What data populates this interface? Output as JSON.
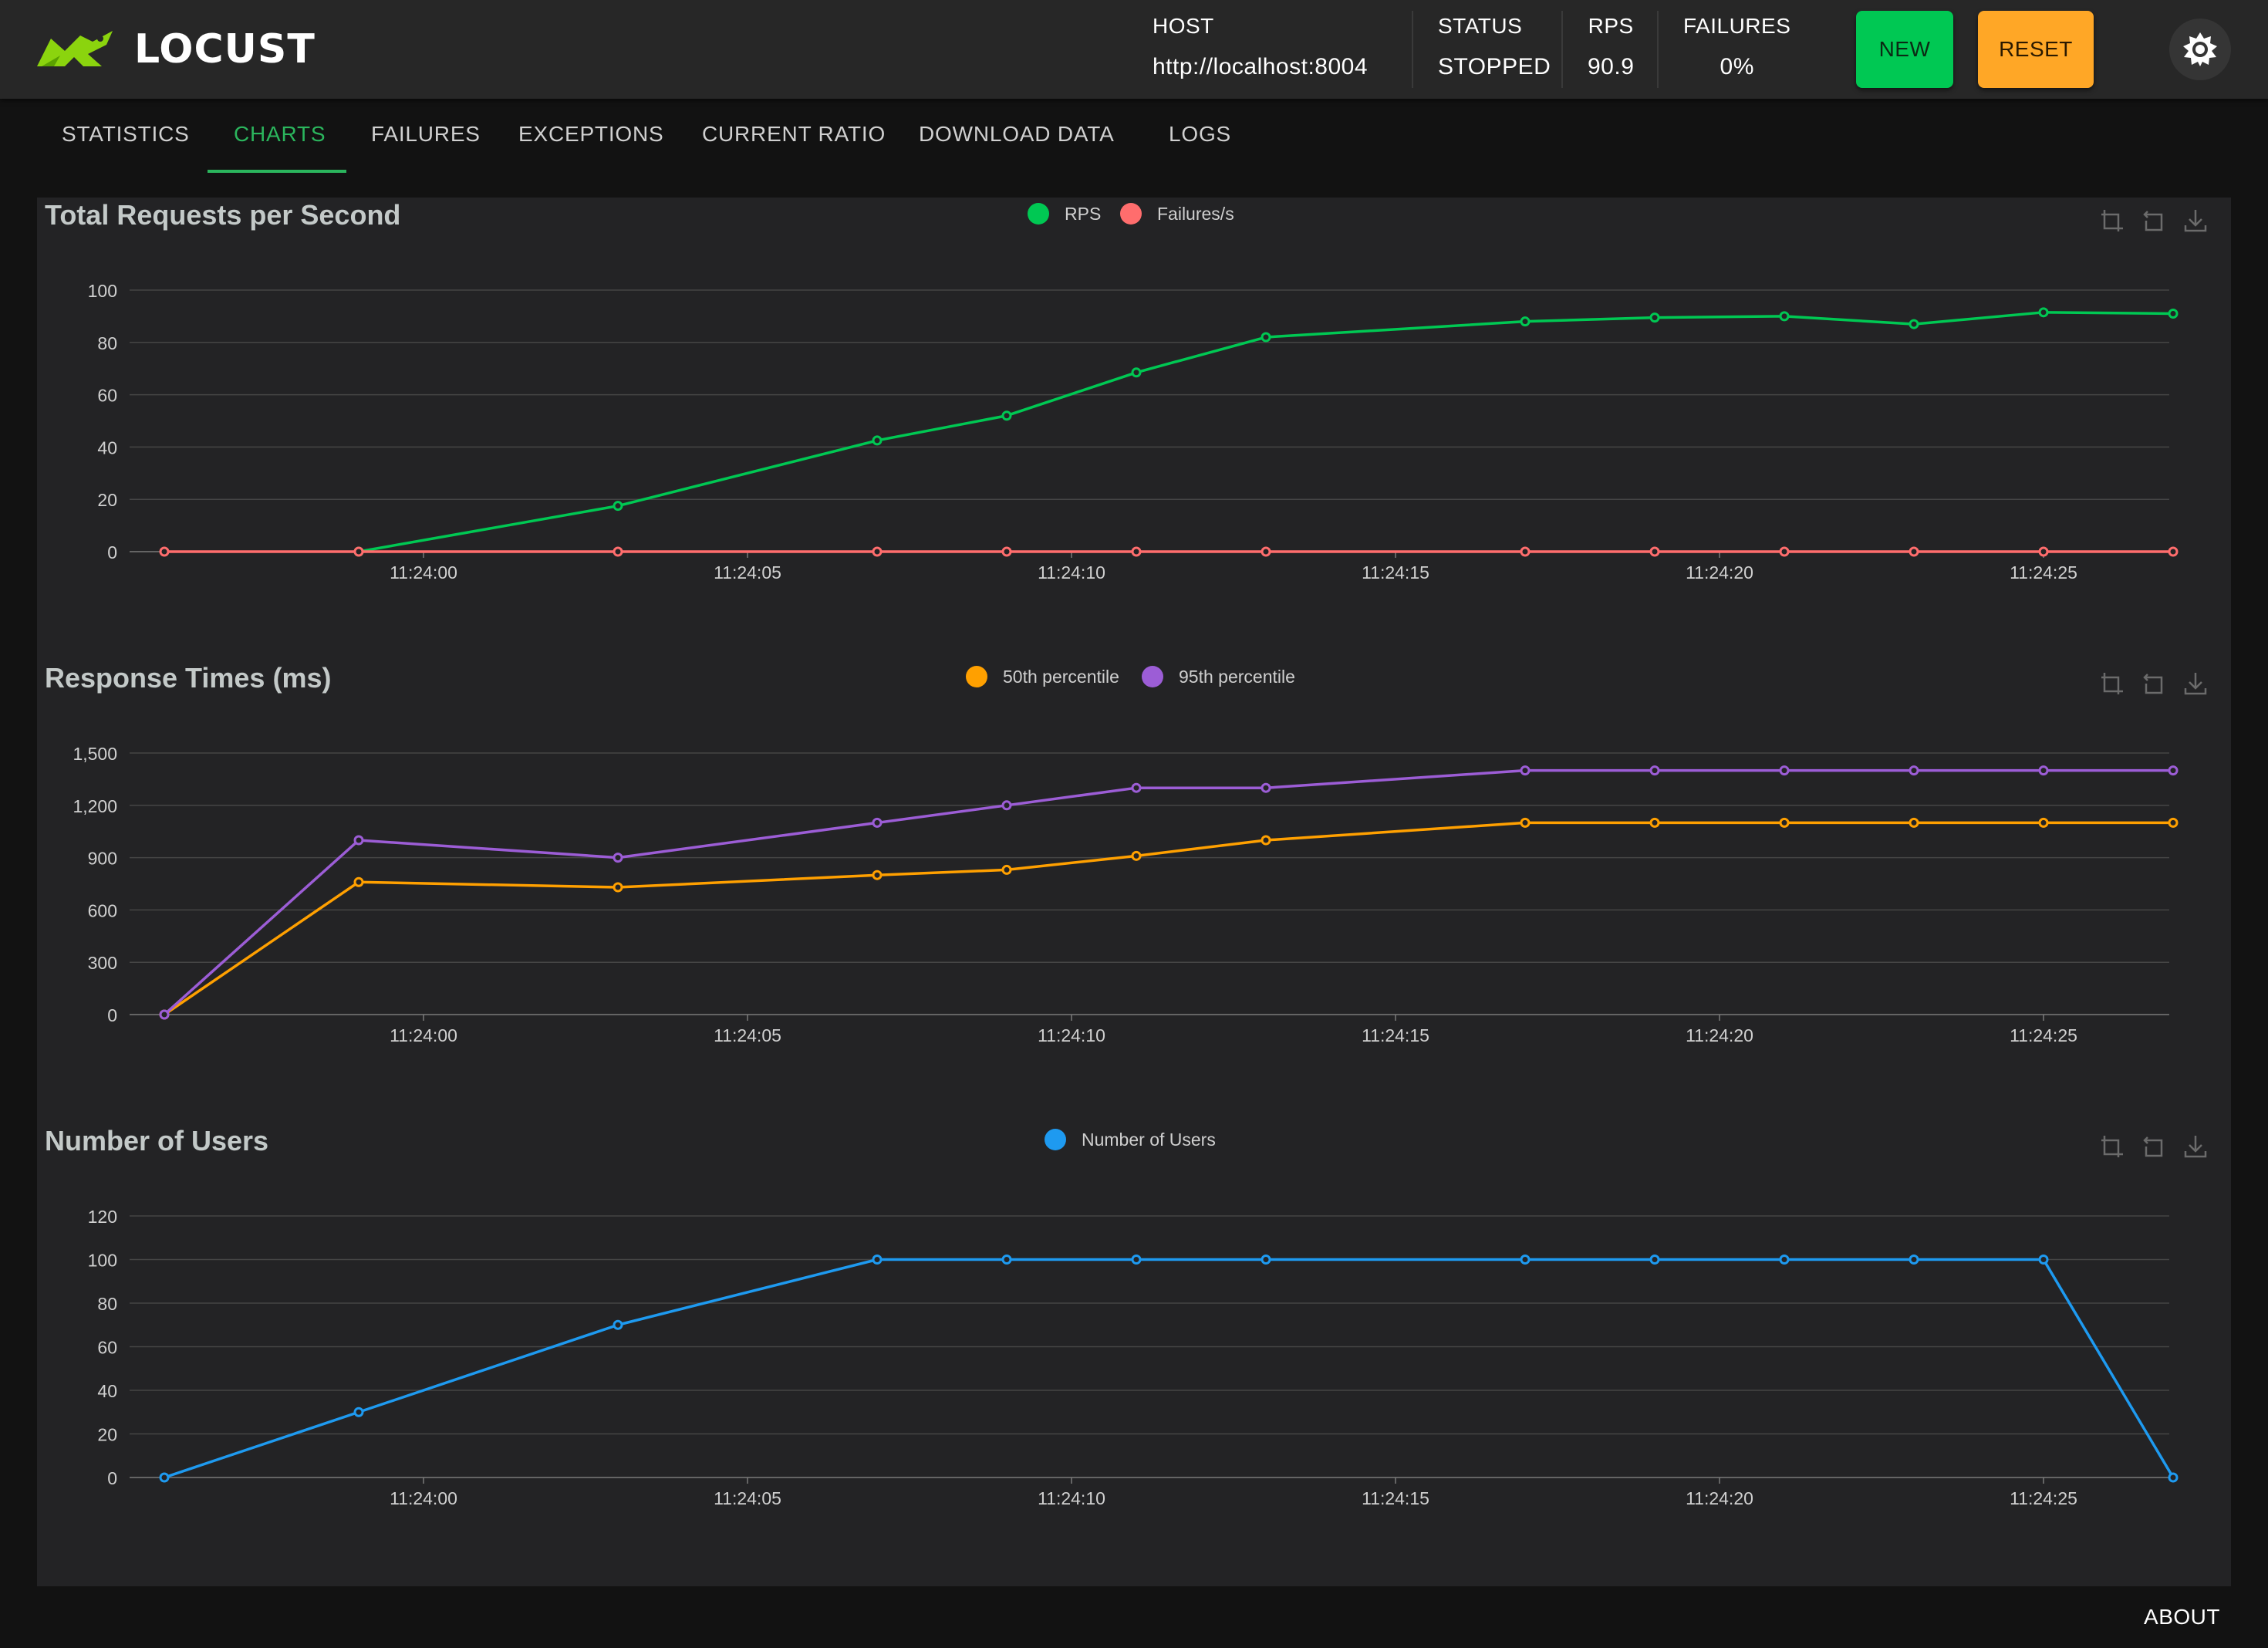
{
  "header": {
    "logo_text": "LOCUST",
    "host_label": "HOST",
    "host_value": "http://localhost:8004",
    "status_label": "STATUS",
    "status_value": "STOPPED",
    "rps_label": "RPS",
    "rps_value": "90.9",
    "failures_label": "FAILURES",
    "failures_value": "0%",
    "new_button": "NEW",
    "reset_button": "RESET"
  },
  "tabs": [
    {
      "label": "STATISTICS",
      "active": false
    },
    {
      "label": "CHARTS",
      "active": true
    },
    {
      "label": "FAILURES",
      "active": false
    },
    {
      "label": "EXCEPTIONS",
      "active": false
    },
    {
      "label": "CURRENT RATIO",
      "active": false
    },
    {
      "label": "DOWNLOAD DATA",
      "active": false
    },
    {
      "label": "LOGS",
      "active": false
    }
  ],
  "footer": {
    "about": "ABOUT"
  },
  "colors": {
    "accent_green": "#00c853",
    "reset_orange": "#ffa726",
    "rps": "#00c853",
    "failures": "#ff6d6d",
    "p50": "#ffa000",
    "p95": "#9c5dd6",
    "users": "#1e9af0"
  },
  "chart_data": [
    {
      "type": "line",
      "title": "Total Requests per Second",
      "x": [
        "11:23:56",
        "11:23:59",
        "11:24:03",
        "11:24:07",
        "11:24:09",
        "11:24:11",
        "11:24:13",
        "11:24:17",
        "11:24:19",
        "11:24:21",
        "11:24:23",
        "11:24:25",
        "11:24:27"
      ],
      "x_ticks": [
        "11:24:00",
        "11:24:05",
        "11:24:10",
        "11:24:15",
        "11:24:20",
        "11:24:25"
      ],
      "ylim": [
        0,
        100
      ],
      "y_ticks": [
        "0",
        "20",
        "40",
        "60",
        "80",
        "100"
      ],
      "series": [
        {
          "name": "RPS",
          "color": "#00c853",
          "values": [
            null,
            0,
            17.5,
            42.5,
            52,
            68.5,
            82,
            88,
            89.5,
            90,
            87,
            91.5,
            91
          ]
        },
        {
          "name": "Failures/s",
          "color": "#ff6d6d",
          "values": [
            0,
            0,
            0,
            0,
            0,
            0,
            0,
            0,
            0,
            0,
            0,
            0,
            0
          ]
        }
      ],
      "grid": true,
      "legend_position": "top-center"
    },
    {
      "type": "line",
      "title": "Response Times (ms)",
      "x": [
        "11:23:56",
        "11:23:59",
        "11:24:03",
        "11:24:07",
        "11:24:09",
        "11:24:11",
        "11:24:13",
        "11:24:17",
        "11:24:19",
        "11:24:21",
        "11:24:23",
        "11:24:25",
        "11:24:27"
      ],
      "x_ticks": [
        "11:24:00",
        "11:24:05",
        "11:24:10",
        "11:24:15",
        "11:24:20",
        "11:24:25"
      ],
      "ylim": [
        0,
        1500
      ],
      "y_ticks": [
        "0",
        "300",
        "600",
        "900",
        "1,200",
        "1,500"
      ],
      "series": [
        {
          "name": "50th percentile",
          "color": "#ffa000",
          "values": [
            0,
            760,
            730,
            800,
            830,
            910,
            1000,
            1100,
            1100,
            1100,
            1100,
            1100,
            1100
          ]
        },
        {
          "name": "95th percentile",
          "color": "#9c5dd6",
          "values": [
            0,
            1000,
            900,
            1100,
            1200,
            1300,
            1300,
            1400,
            1400,
            1400,
            1400,
            1400,
            1400
          ]
        }
      ],
      "grid": true,
      "legend_position": "top-center"
    },
    {
      "type": "line",
      "title": "Number of Users",
      "x": [
        "11:23:56",
        "11:23:59",
        "11:24:03",
        "11:24:07",
        "11:24:09",
        "11:24:11",
        "11:24:13",
        "11:24:17",
        "11:24:19",
        "11:24:21",
        "11:24:23",
        "11:24:25",
        "11:24:27"
      ],
      "x_ticks": [
        "11:24:00",
        "11:24:05",
        "11:24:10",
        "11:24:15",
        "11:24:20",
        "11:24:25"
      ],
      "ylim": [
        0,
        120
      ],
      "y_ticks": [
        "0",
        "20",
        "40",
        "60",
        "80",
        "100",
        "120"
      ],
      "series": [
        {
          "name": "Number of Users",
          "color": "#1e9af0",
          "values": [
            0,
            30,
            70,
            100,
            100,
            100,
            100,
            100,
            100,
            100,
            100,
            100,
            0
          ]
        }
      ],
      "grid": true,
      "legend_position": "top-center"
    }
  ]
}
